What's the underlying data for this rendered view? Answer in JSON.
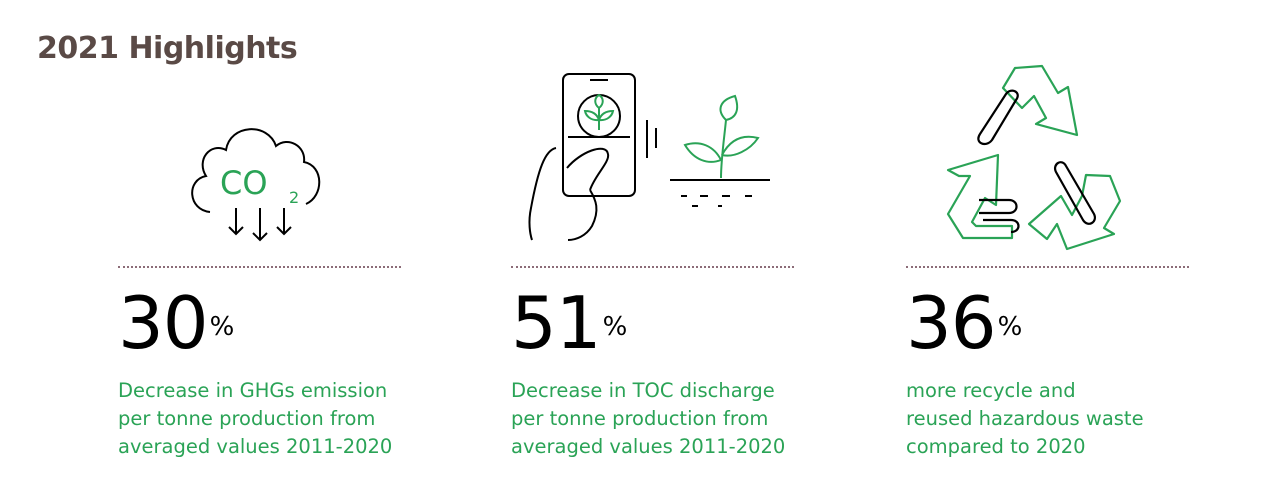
{
  "page_title": "2021 Highlights",
  "highlights": [
    {
      "icon": "co2-cloud-icon",
      "value": "30",
      "unit": "%",
      "desc_lines": [
        "Decrease in GHGs emission",
        "per tonne production from",
        "averaged values 2011-2020"
      ]
    },
    {
      "icon": "phone-plant-icon",
      "value": "51",
      "unit": "%",
      "desc_lines": [
        "Decrease in TOC discharge",
        "per tonne production from",
        "averaged values 2011-2020"
      ]
    },
    {
      "icon": "recycle-icon",
      "value": "36",
      "unit": "%",
      "desc_lines": [
        "more recycle and",
        "reused hazardous waste",
        "compared to 2020"
      ]
    }
  ],
  "icon_text": {
    "co": "CO",
    "two": "2"
  },
  "colors": {
    "accent": "#2aa356",
    "title": "#5a4a46",
    "rule": "#8c6c78"
  }
}
